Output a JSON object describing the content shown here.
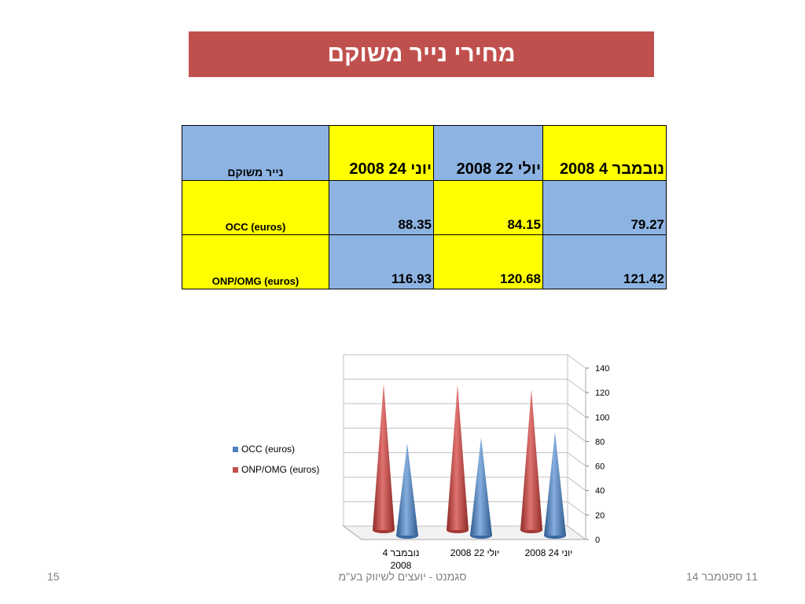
{
  "title": "מחירי נייר משוקם",
  "table": {
    "header": [
      "נייר משוקם",
      "יוני 24 2008",
      "יולי 22 2008",
      "נובמבר 4 2008"
    ],
    "rows": [
      {
        "label": "OCC (euros)",
        "values": [
          "88.35",
          "84.15",
          "79.27"
        ]
      },
      {
        "label": "ONP/OMG (euros)",
        "values": [
          "116.93",
          "120.68",
          "121.42"
        ]
      }
    ]
  },
  "chart_data": {
    "type": "bar",
    "style": "3d-cone",
    "categories": [
      "נובמבר 4 2008",
      "יולי 22 2008",
      "יוני 24 2008"
    ],
    "series": [
      {
        "name": "OCC (euros)",
        "values": [
          79.27,
          84.15,
          88.35
        ],
        "color": "#4f81bd"
      },
      {
        "name": "ONP/OMG (euros)",
        "values": [
          121.42,
          120.68,
          116.93
        ],
        "color": "#c0504d"
      }
    ],
    "yticks": [
      "0",
      "20",
      "40",
      "60",
      "80",
      "100",
      "120",
      "140"
    ],
    "ylim": [
      0,
      140
    ],
    "grid": true,
    "legend": "left"
  },
  "footer": {
    "page_number": "15",
    "company": "סגמנט - יועצים לשיווק בע\"מ",
    "date": "11 ספטמבר 14"
  }
}
